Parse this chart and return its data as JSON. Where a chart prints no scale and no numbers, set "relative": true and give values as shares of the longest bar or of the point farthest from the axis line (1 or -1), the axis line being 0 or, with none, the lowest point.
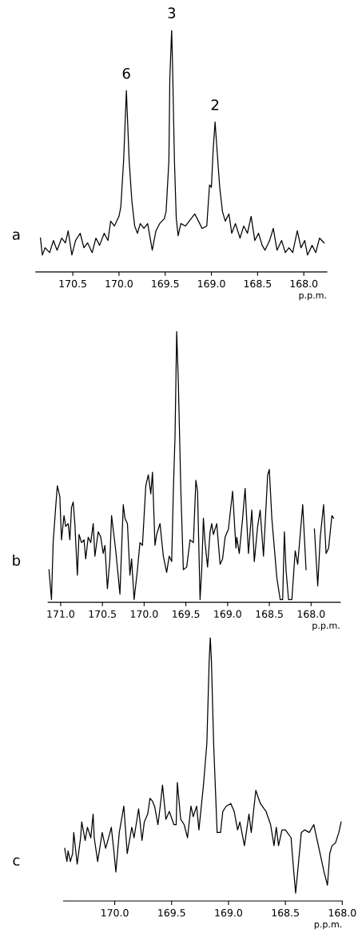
{
  "chart_data": [
    {
      "type": "line",
      "title": "a",
      "xlabel": "p.p.m.",
      "relative": true,
      "tick_labels": "x",
      "xlim": [
        170.9,
        167.75
      ],
      "xticks": [
        170.5,
        {
          "value": 170,
          "label": "170.0"
        },
        169.5,
        {
          "value": 169,
          "label": "169.0"
        },
        168.5,
        {
          "value": 168,
          "label": "168.0"
        }
      ],
      "annotations": [
        {
          "text": "6",
          "x": 169.92,
          "y": 0.75
        },
        {
          "text": "3",
          "x": 169.43,
          "y": 1
        },
        {
          "text": "2",
          "x": 168.96,
          "y": 0.62
        }
      ],
      "x": [
        170.85,
        170.83,
        170.8,
        170.75,
        170.71,
        170.67,
        170.62,
        170.58,
        170.55,
        170.51,
        170.47,
        170.42,
        170.38,
        170.34,
        170.29,
        170.25,
        170.21,
        170.16,
        170.12,
        170.09,
        170.05,
        170.0,
        169.98,
        169.95,
        169.92,
        169.89,
        169.86,
        169.83,
        169.8,
        169.77,
        169.73,
        169.69,
        169.64,
        169.6,
        169.56,
        169.51,
        169.49,
        169.46,
        169.45,
        169.43,
        169.42,
        169.4,
        169.38,
        169.36,
        169.33,
        169.28,
        169.24,
        169.18,
        169.14,
        169.1,
        169.05,
        169.02,
        169.0,
        168.98,
        168.96,
        168.94,
        168.91,
        168.88,
        168.85,
        168.81,
        168.78,
        168.74,
        168.69,
        168.65,
        168.61,
        168.57,
        168.53,
        168.49,
        168.45,
        168.42,
        168.37,
        168.33,
        168.29,
        168.24,
        168.2,
        168.16,
        168.12,
        168.07,
        168.03,
        167.99,
        167.96,
        167.91,
        167.87,
        167.83,
        167.78
      ],
      "series": [
        {
          "color": "#000000",
          "values": [
            0.14,
            0.07,
            0.1,
            0.08,
            0.13,
            0.09,
            0.14,
            0.12,
            0.17,
            0.07,
            0.13,
            0.16,
            0.1,
            0.12,
            0.08,
            0.14,
            0.11,
            0.16,
            0.13,
            0.21,
            0.19,
            0.23,
            0.27,
            0.46,
            0.75,
            0.46,
            0.29,
            0.19,
            0.16,
            0.2,
            0.18,
            0.2,
            0.09,
            0.17,
            0.2,
            0.22,
            0.25,
            0.46,
            0.8,
            1,
            0.85,
            0.46,
            0.22,
            0.15,
            0.2,
            0.19,
            0.21,
            0.24,
            0.21,
            0.18,
            0.19,
            0.36,
            0.35,
            0.51,
            0.62,
            0.51,
            0.35,
            0.25,
            0.21,
            0.24,
            0.16,
            0.2,
            0.14,
            0.19,
            0.16,
            0.23,
            0.13,
            0.16,
            0.11,
            0.09,
            0.13,
            0.18,
            0.09,
            0.13,
            0.08,
            0.1,
            0.08,
            0.17,
            0.1,
            0.13,
            0.07,
            0.11,
            0.08,
            0.14,
            0.12
          ]
        }
      ]
    },
    {
      "type": "line",
      "title": "b",
      "xlabel": "p.p.m.",
      "relative": true,
      "tick_labels": "x",
      "xlim": [
        171.15,
        167.65
      ],
      "xticks": [
        {
          "value": 171,
          "label": "171.0"
        },
        170.5,
        {
          "value": 170,
          "label": "170.0"
        },
        169.5,
        {
          "value": 169,
          "label": "169.0"
        },
        168.5,
        {
          "value": 168,
          "label": "168.0"
        }
      ],
      "x": [
        171.14,
        171.11,
        171.09,
        171.06,
        171.04,
        171.01,
        170.99,
        170.96,
        170.94,
        170.91,
        170.89,
        170.87,
        170.85,
        170.83,
        170.8,
        170.78,
        170.75,
        170.72,
        170.7,
        170.67,
        170.64,
        170.61,
        170.59,
        170.55,
        170.52,
        170.49,
        170.47,
        170.44,
        170.41,
        170.39,
        170.34,
        170.29,
        170.25,
        170.23,
        170.2,
        170.17,
        170.15,
        170.12,
        170.08,
        170.05,
        170.02,
        169.98,
        169.95,
        169.92,
        169.9,
        169.87,
        169.85,
        169.81,
        169.77,
        169.73,
        169.7,
        169.67,
        169.65,
        169.63,
        169.61,
        169.59,
        169.56,
        169.53,
        169.49,
        169.45,
        169.41,
        169.38,
        169.36,
        169.33,
        169.31,
        169.29,
        169.27,
        169.24,
        169.21,
        169.19,
        169.17,
        169.13,
        169.09,
        169.06,
        169.03,
        168.99,
        168.94,
        168.9,
        168.89,
        168.86,
        168.82,
        168.79,
        168.75,
        168.71,
        168.68,
        168.64,
        168.61,
        168.57,
        168.52,
        168.5,
        168.47,
        168.44,
        168.41,
        168.37,
        168.34,
        168.32,
        168.3,
        168.27,
        168.23,
        168.19,
        168.16,
        168.1,
        168.06,
        168.01,
        167.96,
        167.92,
        167.89,
        167.85,
        167.82,
        167.79,
        167.75,
        167.73
      ],
      "series": [
        {
          "color": "#000000",
          "values": [
            0.12,
            0.01,
            0.22,
            0.35,
            0.43,
            0.39,
            0.23,
            0.32,
            0.28,
            0.29,
            0.23,
            0.35,
            0.37,
            0.29,
            0.1,
            0.25,
            0.22,
            0.23,
            0.16,
            0.24,
            0.22,
            0.29,
            0.17,
            0.26,
            0.24,
            0.18,
            0.21,
            0.05,
            0.16,
            0.32,
            0.19,
            0.03,
            0.36,
            0.31,
            0.29,
            0.1,
            0.16,
            0.01,
            0.12,
            0.22,
            0.21,
            0.43,
            0.47,
            0.4,
            0.48,
            0.21,
            0.25,
            0.29,
            0.17,
            0.11,
            0.17,
            0.15,
            0.41,
            0.61,
            1,
            0.81,
            0.41,
            0.12,
            0.13,
            0.23,
            0.22,
            0.45,
            0.41,
            0.01,
            0.12,
            0.31,
            0.22,
            0.13,
            0.26,
            0.29,
            0.25,
            0.29,
            0.14,
            0.16,
            0.24,
            0.27,
            0.41,
            0.2,
            0.24,
            0.18,
            0.31,
            0.42,
            0.18,
            0.34,
            0.15,
            0.28,
            0.34,
            0.17,
            0.47,
            0.49,
            0.31,
            0.2,
            0.09,
            0.01,
            0.01,
            0.26,
            0.12,
            0.01,
            0.01,
            0.19,
            0.14,
            0.36,
            0.12,
            null,
            0.27,
            0.06,
            0.24,
            0.36,
            0.18,
            0.2,
            0.32,
            0.31
          ]
        }
      ]
    },
    {
      "type": "line",
      "title": "c",
      "xlabel": "p.p.m.",
      "relative": true,
      "tick_labels": "x",
      "xlim": [
        170.45,
        168.0
      ],
      "xticks": [
        {
          "value": 170,
          "label": "170.0"
        },
        169.5,
        {
          "value": 169,
          "label": "169.0"
        },
        168.5,
        {
          "value": 168,
          "label": "168.0"
        }
      ],
      "x": [
        170.44,
        170.42,
        170.41,
        170.39,
        170.37,
        170.36,
        170.34,
        170.33,
        170.3,
        170.29,
        170.26,
        170.24,
        170.21,
        170.19,
        170.18,
        170.15,
        170.11,
        170.08,
        170.06,
        170.03,
        170.01,
        169.99,
        169.96,
        169.92,
        169.89,
        169.85,
        169.83,
        169.79,
        169.76,
        169.74,
        169.71,
        169.69,
        169.67,
        169.65,
        169.62,
        169.6,
        169.58,
        169.55,
        169.52,
        169.48,
        169.46,
        169.45,
        169.42,
        169.39,
        169.36,
        169.33,
        169.31,
        169.28,
        169.26,
        169.22,
        169.19,
        169.17,
        169.16,
        169.15,
        169.13,
        169.1,
        169.07,
        169.05,
        169.02,
        168.98,
        168.95,
        168.92,
        168.9,
        168.86,
        168.82,
        168.8,
        168.76,
        168.72,
        168.67,
        168.63,
        168.6,
        168.58,
        168.56,
        168.53,
        168.5,
        168.45,
        168.43,
        168.41,
        168.39,
        168.36,
        168.33,
        168.29,
        168.25,
        168.22,
        168.18,
        168.16,
        168.13,
        168.11,
        168.09,
        168.06,
        168.03,
        168.01
      ],
      "series": [
        {
          "color": "#000000",
          "values": [
            0.2,
            0.15,
            0.19,
            0.15,
            0.18,
            0.26,
            0.18,
            0.14,
            0.24,
            0.3,
            0.23,
            0.28,
            0.24,
            0.33,
            0.24,
            0.15,
            0.26,
            0.2,
            0.23,
            0.28,
            0.2,
            0.11,
            0.26,
            0.36,
            0.18,
            0.28,
            0.24,
            0.35,
            0.23,
            0.3,
            0.33,
            0.39,
            0.38,
            0.36,
            0.29,
            0.36,
            0.44,
            0.31,
            0.34,
            0.29,
            0.29,
            0.45,
            0.31,
            0.29,
            0.24,
            0.36,
            0.32,
            0.36,
            0.27,
            0.44,
            0.6,
            0.91,
            1,
            0.91,
            0.59,
            0.26,
            0.26,
            0.34,
            0.36,
            0.37,
            0.34,
            0.27,
            0.3,
            0.21,
            0.33,
            0.26,
            0.42,
            0.37,
            0.34,
            0.29,
            0.21,
            0.28,
            0.21,
            0.27,
            0.27,
            0.24,
            0.13,
            0.03,
            0.12,
            0.26,
            0.27,
            0.26,
            0.29,
            0.23,
            0.15,
            0.11,
            0.06,
            0.18,
            0.21,
            0.22,
            0.26,
            0.3
          ]
        }
      ]
    }
  ]
}
